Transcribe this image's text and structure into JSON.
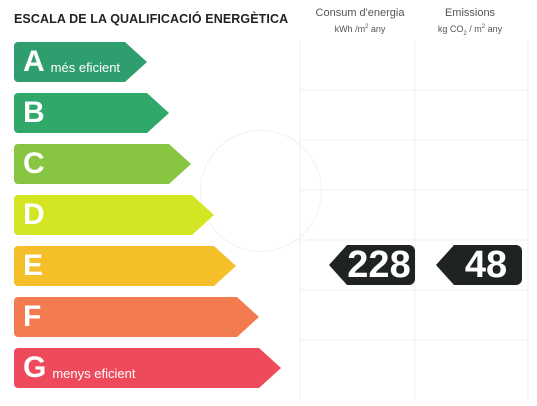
{
  "title": "ESCALA DE LA QUALIFICACIÓ ENERGÈTICA",
  "columns": {
    "consum": {
      "line1": "Consum d'energia",
      "unit_a": "kWh /m",
      "unit_sup": "2",
      "unit_b": " any"
    },
    "emissions": {
      "line1": "Emissions",
      "unit_a": "kg CO",
      "unit_sub": "2",
      "unit_b": " / m",
      "unit_sup": "2",
      "unit_c": " any"
    }
  },
  "bands": [
    {
      "letter": "A",
      "label": "més eficient",
      "color": "#2f9e6f"
    },
    {
      "letter": "B",
      "label": "",
      "color": "#2fa86a"
    },
    {
      "letter": "C",
      "label": "",
      "color": "#88c540"
    },
    {
      "letter": "D",
      "label": "",
      "color": "#d4e524"
    },
    {
      "letter": "E",
      "label": "",
      "color": "#f5bf2a"
    },
    {
      "letter": "F",
      "label": "",
      "color": "#f27c50"
    },
    {
      "letter": "G",
      "label": "menys eficient",
      "color": "#ee4a5b"
    }
  ],
  "rating": {
    "consum_value": "228",
    "emissions_value": "48"
  }
}
